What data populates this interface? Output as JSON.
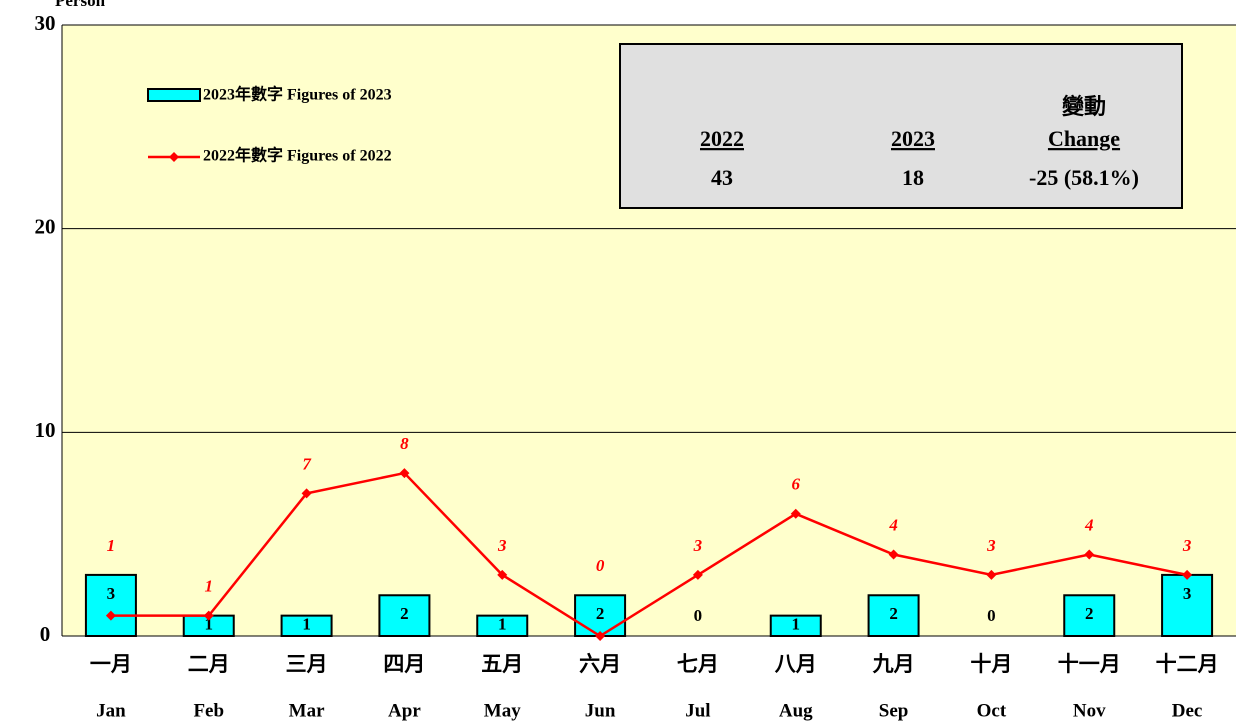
{
  "chart_data": {
    "type": "bar_line",
    "y_axis_label": "Person",
    "categories": [
      [
        "一月",
        "Jan"
      ],
      [
        "二月",
        "Feb"
      ],
      [
        "三月",
        "Mar"
      ],
      [
        "四月",
        "Apr"
      ],
      [
        "五月",
        "May"
      ],
      [
        "六月",
        "Jun"
      ],
      [
        "七月",
        "Jul"
      ],
      [
        "八月",
        "Aug"
      ],
      [
        "九月",
        "Sep"
      ],
      [
        "十月",
        "Oct"
      ],
      [
        "十一月",
        "Nov"
      ],
      [
        "十二月",
        "Dec"
      ]
    ],
    "series": [
      {
        "name": "2023年數字 Figures of 2023",
        "type": "bar",
        "color": "#00ffff",
        "values": [
          3,
          1,
          1,
          2,
          1,
          2,
          0,
          1,
          2,
          0,
          2,
          3
        ]
      },
      {
        "name": "2022年數字 Figures of 2022",
        "type": "line",
        "color": "#ff0000",
        "values": [
          1,
          1,
          7,
          8,
          3,
          0,
          3,
          6,
          4,
          3,
          4,
          3
        ]
      }
    ],
    "ylim": [
      0,
      30
    ],
    "yticks": [
      0,
      10,
      20,
      30
    ],
    "grid": true,
    "legend": "upper left",
    "summary": {
      "columns": [
        {
          "header": "2022",
          "value": "43"
        },
        {
          "header": "2023",
          "value": "18"
        },
        {
          "header_cn": "變動",
          "header": "Change",
          "value": "-25 (58.1%)"
        }
      ]
    }
  }
}
